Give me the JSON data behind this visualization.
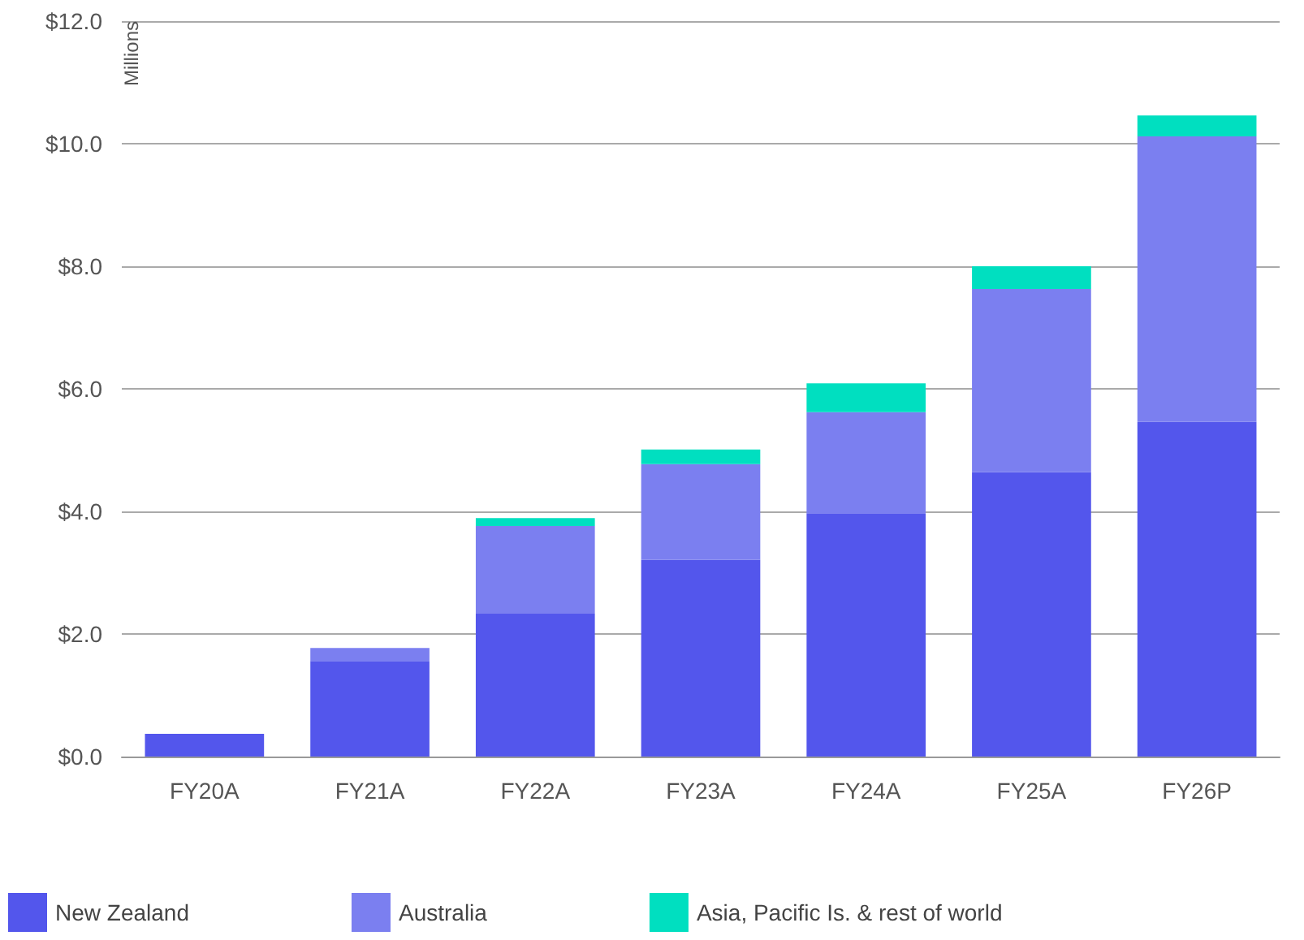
{
  "chart_data": {
    "type": "bar",
    "stacked": true,
    "ylabel": "Millions",
    "categories": [
      "FY20A",
      "FY21A",
      "FY22A",
      "FY23A",
      "FY24A",
      "FY25A",
      "FY26P"
    ],
    "series": [
      {
        "name": "New Zealand",
        "color": "#5356ec",
        "values": [
          0.37,
          1.56,
          2.33,
          3.21,
          3.97,
          4.64,
          5.46
        ]
      },
      {
        "name": "Australia",
        "color": "#7b7ff0",
        "values": [
          0,
          0.21,
          1.43,
          1.56,
          1.65,
          2.99,
          4.66
        ]
      },
      {
        "name": "Asia, Pacific Is. & rest of world",
        "color": "#00dfc0",
        "values": [
          0,
          0,
          0.13,
          0.24,
          0.47,
          0.37,
          0.34
        ]
      }
    ],
    "ylim": [
      0,
      12
    ],
    "yticks": [
      {
        "value": 0,
        "label": "$0.0"
      },
      {
        "value": 2,
        "label": "$2.0"
      },
      {
        "value": 4,
        "label": "$4.0"
      },
      {
        "value": 6,
        "label": "$6.0"
      },
      {
        "value": 8,
        "label": "$8.0"
      },
      {
        "value": 10,
        "label": "$10.0"
      },
      {
        "value": 12,
        "label": "$12.0"
      }
    ],
    "grid": "y",
    "legend": "bottom"
  }
}
